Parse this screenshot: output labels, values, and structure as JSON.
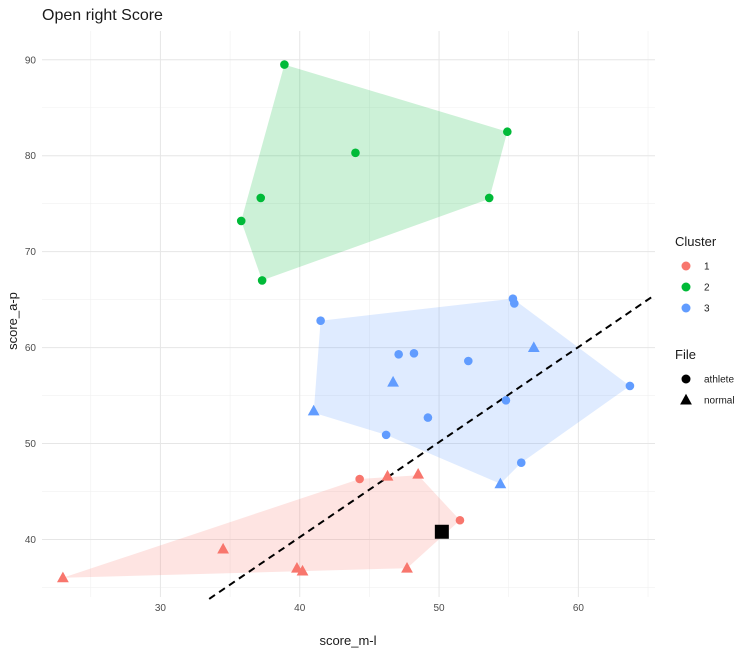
{
  "chart_data": {
    "type": "scatter",
    "title": "Open right Score",
    "xlabel": "score_m-l",
    "ylabel": "score_a-p",
    "xlim": [
      21.5,
      65.5
    ],
    "ylim": [
      34,
      93
    ],
    "x_ticks": [
      30,
      40,
      50,
      60
    ],
    "y_ticks": [
      40,
      50,
      60,
      70,
      80,
      90
    ],
    "grid": true,
    "legend_position": "right",
    "cluster_legend": {
      "title": "Cluster",
      "items": [
        {
          "label": "1",
          "color": "#F8766D"
        },
        {
          "label": "2",
          "color": "#00BA38"
        },
        {
          "label": "3",
          "color": "#619CFF"
        }
      ]
    },
    "file_legend": {
      "title": "File",
      "items": [
        {
          "label": "athlete",
          "shape": "circle"
        },
        {
          "label": "normal",
          "shape": "triangle"
        }
      ]
    },
    "hulls": [
      {
        "cluster": "1",
        "color": "#F8766D",
        "points": [
          [
            23,
            36
          ],
          [
            44.3,
            46.3
          ],
          [
            48.5,
            46.7
          ],
          [
            51.5,
            42
          ],
          [
            47.7,
            37
          ]
        ]
      },
      {
        "cluster": "2",
        "color": "#00BA38",
        "points": [
          [
            38.9,
            89.5
          ],
          [
            54.9,
            82.5
          ],
          [
            53.6,
            75.5
          ],
          [
            37.3,
            67
          ],
          [
            35.8,
            73.2
          ]
        ]
      },
      {
        "cluster": "3",
        "color": "#619CFF",
        "points": [
          [
            41.5,
            62.8
          ],
          [
            55.3,
            65.1
          ],
          [
            63.7,
            56
          ],
          [
            55.9,
            48
          ],
          [
            54.4,
            45.8
          ],
          [
            46.2,
            50.9
          ],
          [
            41,
            53.2
          ]
        ]
      }
    ],
    "points": [
      {
        "x": 44.3,
        "y": 46.3,
        "cluster": "1",
        "file": "athlete"
      },
      {
        "x": 51.5,
        "y": 42,
        "cluster": "1",
        "file": "athlete"
      },
      {
        "x": 23,
        "y": 36,
        "cluster": "1",
        "file": "normal"
      },
      {
        "x": 34.5,
        "y": 39,
        "cluster": "1",
        "file": "normal"
      },
      {
        "x": 39.8,
        "y": 37,
        "cluster": "1",
        "file": "normal"
      },
      {
        "x": 40.2,
        "y": 36.7,
        "cluster": "1",
        "file": "normal"
      },
      {
        "x": 46.3,
        "y": 46.6,
        "cluster": "1",
        "file": "normal"
      },
      {
        "x": 48.5,
        "y": 46.8,
        "cluster": "1",
        "file": "normal"
      },
      {
        "x": 47.7,
        "y": 37,
        "cluster": "1",
        "file": "normal"
      },
      {
        "x": 38.9,
        "y": 89.5,
        "cluster": "2",
        "file": "athlete"
      },
      {
        "x": 54.9,
        "y": 82.5,
        "cluster": "2",
        "file": "athlete"
      },
      {
        "x": 44,
        "y": 80.3,
        "cluster": "2",
        "file": "athlete"
      },
      {
        "x": 37.2,
        "y": 75.6,
        "cluster": "2",
        "file": "athlete"
      },
      {
        "x": 53.6,
        "y": 75.6,
        "cluster": "2",
        "file": "athlete"
      },
      {
        "x": 35.8,
        "y": 73.2,
        "cluster": "2",
        "file": "athlete"
      },
      {
        "x": 37.3,
        "y": 67,
        "cluster": "2",
        "file": "athlete"
      },
      {
        "x": 41.5,
        "y": 62.8,
        "cluster": "3",
        "file": "athlete"
      },
      {
        "x": 55.3,
        "y": 65.1,
        "cluster": "3",
        "file": "athlete"
      },
      {
        "x": 55.4,
        "y": 64.6,
        "cluster": "3",
        "file": "athlete"
      },
      {
        "x": 47.1,
        "y": 59.3,
        "cluster": "3",
        "file": "athlete"
      },
      {
        "x": 48.2,
        "y": 59.4,
        "cluster": "3",
        "file": "athlete"
      },
      {
        "x": 52.1,
        "y": 58.6,
        "cluster": "3",
        "file": "athlete"
      },
      {
        "x": 63.7,
        "y": 56,
        "cluster": "3",
        "file": "athlete"
      },
      {
        "x": 54.8,
        "y": 54.5,
        "cluster": "3",
        "file": "athlete"
      },
      {
        "x": 49.2,
        "y": 52.7,
        "cluster": "3",
        "file": "athlete"
      },
      {
        "x": 46.2,
        "y": 50.9,
        "cluster": "3",
        "file": "athlete"
      },
      {
        "x": 55.9,
        "y": 48,
        "cluster": "3",
        "file": "athlete"
      },
      {
        "x": 56.8,
        "y": 60,
        "cluster": "3",
        "file": "normal"
      },
      {
        "x": 46.7,
        "y": 56.4,
        "cluster": "3",
        "file": "normal"
      },
      {
        "x": 41,
        "y": 53.4,
        "cluster": "3",
        "file": "normal"
      },
      {
        "x": 54.4,
        "y": 45.8,
        "cluster": "3",
        "file": "normal"
      }
    ],
    "highlight_point": {
      "x": 50.2,
      "y": 40.8,
      "shape": "square",
      "color": "#000000"
    },
    "reference_line": {
      "x1": 33.5,
      "y1": 33.8,
      "x2": 65.5,
      "y2": 65.5,
      "style": "dashed",
      "color": "#000000"
    }
  }
}
